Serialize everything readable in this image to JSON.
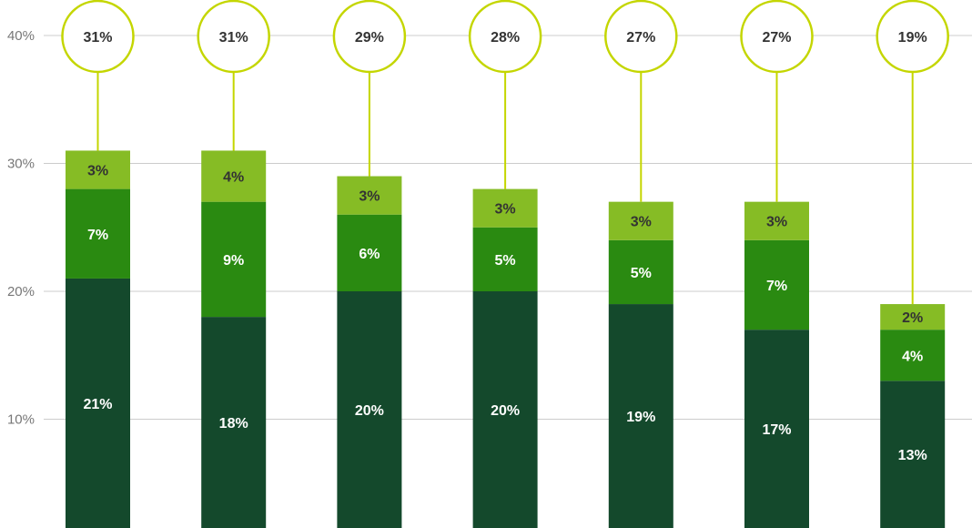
{
  "chart_data": {
    "type": "bar",
    "stacked": true,
    "title": "",
    "xlabel": "",
    "ylabel": "",
    "ylim": [
      0,
      40
    ],
    "yticks": [
      10,
      20,
      30,
      40
    ],
    "ytick_labels": [
      "10%",
      "20%",
      "30%",
      "40%"
    ],
    "grid": true,
    "categories": [
      "",
      "",
      "",
      "",
      "",
      "",
      ""
    ],
    "series": [
      {
        "values": [
          21,
          18,
          20,
          20,
          19,
          17,
          13
        ],
        "labels": [
          "21%",
          "18%",
          "20%",
          "20%",
          "19%",
          "17%",
          "13%"
        ],
        "color": "#14492c",
        "label_color": "#ffffff"
      },
      {
        "values": [
          7,
          9,
          6,
          5,
          5,
          7,
          4
        ],
        "labels": [
          "7%",
          "9%",
          "6%",
          "5%",
          "5%",
          "7%",
          "4%"
        ],
        "color": "#2a8a11",
        "label_color": "#ffffff"
      },
      {
        "values": [
          3,
          4,
          3,
          3,
          3,
          3,
          2
        ],
        "labels": [
          "3%",
          "4%",
          "3%",
          "3%",
          "3%",
          "3%",
          "2%"
        ],
        "color": "#86bc25",
        "label_color": "#333333"
      }
    ],
    "totals": [
      31,
      31,
      29,
      28,
      27,
      27,
      19
    ],
    "total_labels": [
      "31%",
      "31%",
      "29%",
      "28%",
      "27%",
      "27%",
      "19%"
    ],
    "callout_color": "#c4d600",
    "grid_color": "#cccccc"
  }
}
